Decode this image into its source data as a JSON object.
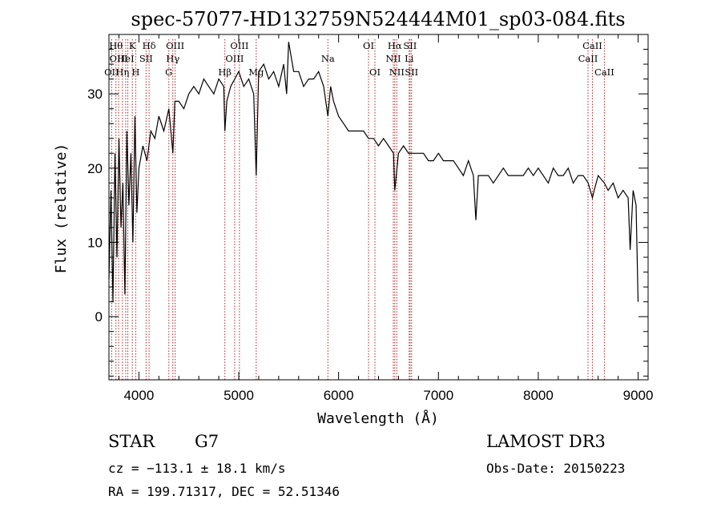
{
  "chart_data": {
    "type": "line",
    "title": "spec-57077-HD132759N524444M01_sp03-084.fits",
    "xlabel": "Wavelength (Å)",
    "ylabel": "Flux (relative)",
    "xlim": [
      3700,
      9100
    ],
    "ylim": [
      -8.5,
      38
    ],
    "xticks": [
      4000,
      5000,
      6000,
      7000,
      8000,
      9000
    ],
    "yticks": [
      0,
      10,
      20,
      30
    ],
    "series": [
      {
        "x": [
          3700,
          3720,
          3740,
          3760,
          3780,
          3800,
          3820,
          3840,
          3860,
          3880,
          3900,
          3920,
          3940,
          3960,
          3980,
          4000,
          4040,
          4080,
          4120,
          4160,
          4200,
          4250,
          4300,
          4340,
          4360,
          4400,
          4450,
          4500,
          4550,
          4600,
          4650,
          4700,
          4750,
          4800,
          4850,
          4861,
          4880,
          4920,
          4960,
          5000,
          5050,
          5100,
          5150,
          5175,
          5200,
          5250,
          5300,
          5350,
          5400,
          5450,
          5480,
          5500,
          5550,
          5600,
          5650,
          5700,
          5750,
          5800,
          5850,
          5893,
          5920,
          5950,
          6000,
          6050,
          6100,
          6150,
          6200,
          6250,
          6300,
          6350,
          6400,
          6450,
          6500,
          6550,
          6563,
          6600,
          6650,
          6700,
          6750,
          6800,
          6850,
          6900,
          6950,
          7000,
          7050,
          7100,
          7150,
          7200,
          7250,
          7300,
          7350,
          7375,
          7400,
          7450,
          7500,
          7550,
          7600,
          7650,
          7700,
          7750,
          7800,
          7850,
          7900,
          7950,
          8000,
          8050,
          8100,
          8150,
          8200,
          8250,
          8300,
          8350,
          8400,
          8450,
          8500,
          8542,
          8560,
          8600,
          8662,
          8700,
          8750,
          8800,
          8850,
          8900,
          8920,
          8950,
          8980,
          9000
        ],
        "y": [
          5,
          17,
          2,
          22,
          8,
          24,
          12,
          18,
          3,
          25,
          15,
          22,
          10,
          27,
          14,
          20,
          23,
          21,
          25,
          24,
          27,
          25,
          28,
          22,
          29,
          29,
          28,
          30,
          31,
          30,
          32,
          31,
          30,
          32,
          31,
          25,
          29,
          31,
          32,
          33,
          31,
          32,
          30,
          19,
          33,
          34,
          32,
          33,
          31,
          34,
          30,
          37,
          33,
          33,
          31,
          32,
          32,
          33,
          31,
          27,
          31,
          29,
          27,
          26,
          25,
          25,
          25,
          25,
          24,
          24,
          23,
          24,
          23,
          22,
          17,
          22,
          23,
          22,
          22,
          22,
          22,
          21,
          21,
          22,
          21,
          21,
          21,
          20,
          19,
          21,
          19,
          13,
          19,
          19,
          19,
          18,
          19,
          20,
          19,
          19,
          19,
          19,
          20,
          19,
          20,
          19,
          18,
          20,
          19,
          19,
          20,
          18,
          19,
          19,
          18,
          16,
          17,
          19,
          18,
          17,
          18,
          16,
          17,
          16,
          9,
          17,
          15,
          2
        ]
      }
    ],
    "line_markers": [
      {
        "x": 3727,
        "label": "OII",
        "row": 3
      },
      {
        "x": 3770,
        "label": "Hθ",
        "row": 1
      },
      {
        "x": 3797,
        "label": "OIII",
        "row": 2
      },
      {
        "x": 3835,
        "label": "Hη",
        "row": 3
      },
      {
        "x": 3868,
        "label": "HeI",
        "row": 2
      },
      {
        "x": 3889,
        "label": "",
        "row": 0
      },
      {
        "x": 3934,
        "label": "K",
        "row": 1
      },
      {
        "x": 3968,
        "label": "H",
        "row": 3
      },
      {
        "x": 4072,
        "label": "SII",
        "row": 2
      },
      {
        "x": 4102,
        "label": "Hδ",
        "row": 1
      },
      {
        "x": 4300,
        "label": "G",
        "row": 3
      },
      {
        "x": 4340,
        "label": "Hγ",
        "row": 2
      },
      {
        "x": 4363,
        "label": "OIII",
        "row": 1
      },
      {
        "x": 4861,
        "label": "Hβ",
        "row": 3
      },
      {
        "x": 4959,
        "label": "OIII",
        "row": 2
      },
      {
        "x": 5007,
        "label": "OIII",
        "row": 1
      },
      {
        "x": 5175,
        "label": "Mg",
        "row": 3
      },
      {
        "x": 5893,
        "label": "Na",
        "row": 2
      },
      {
        "x": 6300,
        "label": "OI",
        "row": 1
      },
      {
        "x": 6364,
        "label": "OI",
        "row": 3
      },
      {
        "x": 6548,
        "label": "NII",
        "row": 2
      },
      {
        "x": 6563,
        "label": "Hα",
        "row": 1
      },
      {
        "x": 6583,
        "label": "NII",
        "row": 3
      },
      {
        "x": 6707,
        "label": "Li",
        "row": 2
      },
      {
        "x": 6716,
        "label": "SII",
        "row": 1
      },
      {
        "x": 6731,
        "label": "SII",
        "row": 3
      },
      {
        "x": 8498,
        "label": "CaII",
        "row": 2
      },
      {
        "x": 8542,
        "label": "CaII",
        "row": 1
      },
      {
        "x": 8662,
        "label": "CaII",
        "row": 3
      }
    ],
    "colors": {
      "spectrum": "#000000",
      "markers": "#b22222",
      "axes": "#000000"
    }
  },
  "info": {
    "object_class": "STAR",
    "subclass": "G7",
    "survey": "LAMOST DR3",
    "velocity": "cz = −113.1 ± 18.1 km/s",
    "obs_date": "Obs-Date: 20150223",
    "coordinates": "RA = 199.71317, DEC =  52.51346"
  }
}
